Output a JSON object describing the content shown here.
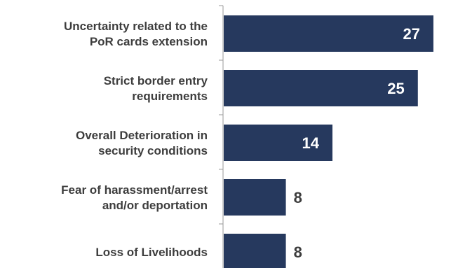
{
  "colors": {
    "bar": "#26395e",
    "axis": "#9a9a9a",
    "label_text": "#3d3d3d",
    "value_inside_text": "#ffffff",
    "value_outside_text": "#3d3d3d"
  },
  "chart_data": {
    "type": "bar",
    "orientation": "horizontal",
    "categories": [
      [
        "Uncertainty related to the",
        "PoR cards extension"
      ],
      [
        "Strict border entry",
        "requirements"
      ],
      [
        "Overall Deterioration in",
        "security conditions"
      ],
      [
        "Fear of harassment/arrest",
        "and/or deportation"
      ],
      [
        "Loss of Livelihoods"
      ]
    ],
    "values": [
      27,
      25,
      14,
      8,
      8
    ],
    "value_labels": [
      "27",
      "25",
      "14",
      "8",
      "8"
    ],
    "xlim": [
      0,
      28
    ],
    "grid": false,
    "legend": "none"
  }
}
